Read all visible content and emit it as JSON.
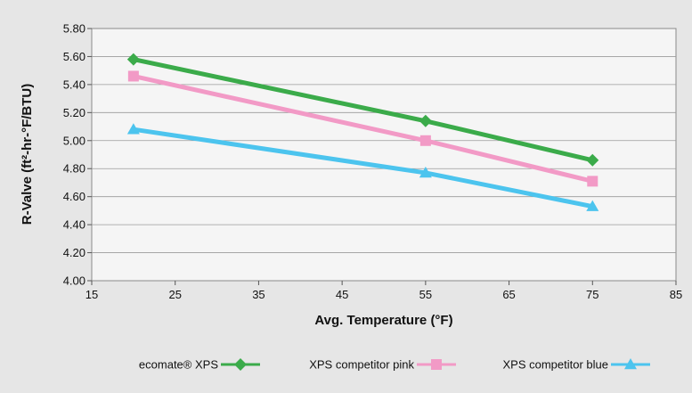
{
  "chart_data": {
    "type": "line",
    "title": "",
    "xlabel": "Avg. Temperature (°F)",
    "ylabel": "R-Valve (ft²-hr-°F/BTU)",
    "xlim": [
      15,
      85
    ],
    "ylim": [
      4.0,
      5.8
    ],
    "xticks": [
      15,
      25,
      35,
      45,
      55,
      65,
      75,
      85
    ],
    "yticks": [
      "4.00",
      "4.20",
      "4.40",
      "4.60",
      "4.80",
      "5.00",
      "5.20",
      "5.40",
      "5.60",
      "5.80"
    ],
    "grid": "horizontal",
    "legend_position": "bottom",
    "series": [
      {
        "name": "ecomate® XPS",
        "color": "#3bab4a",
        "marker": "diamond",
        "x": [
          20,
          55,
          75
        ],
        "y": [
          5.58,
          5.14,
          4.86
        ]
      },
      {
        "name": "XPS competitor pink",
        "color": "#f29ac6",
        "marker": "square",
        "x": [
          20,
          55,
          75
        ],
        "y": [
          5.46,
          5.0,
          4.71
        ]
      },
      {
        "name": "XPS competitor blue",
        "color": "#4cc4ee",
        "marker": "triangle",
        "x": [
          20,
          55,
          75
        ],
        "y": [
          5.08,
          4.77,
          4.53
        ]
      }
    ]
  }
}
